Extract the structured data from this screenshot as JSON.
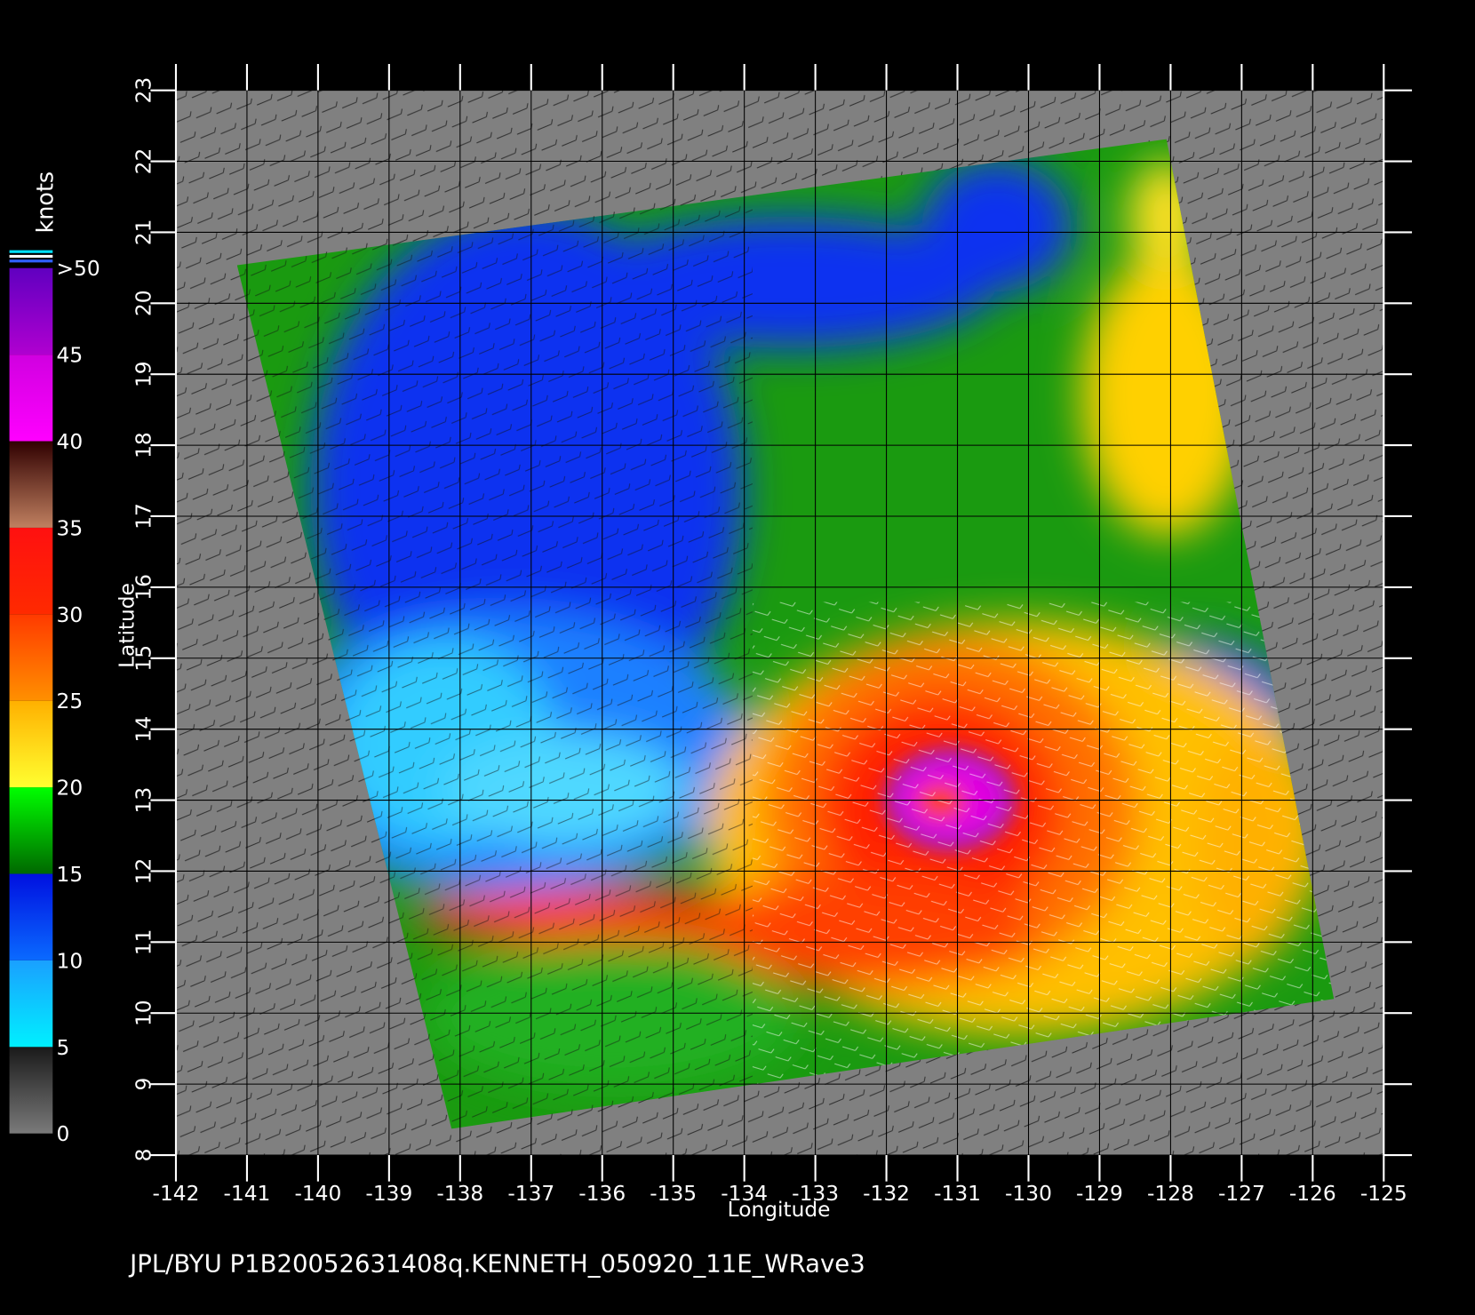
{
  "map": {
    "x_label": "Longitude",
    "y_label": "Latitude",
    "xlim": [
      -142,
      -125
    ],
    "xticks": [
      -142,
      -141,
      -140,
      -139,
      -138,
      -137,
      -136,
      -135,
      -134,
      -133,
      -132,
      -131,
      -130,
      -129,
      -128,
      -127,
      -126,
      -125
    ],
    "ylim": [
      8,
      23
    ],
    "yticks": [
      8,
      9,
      10,
      11,
      12,
      13,
      14,
      15,
      16,
      17,
      18,
      19,
      20,
      21,
      22,
      23
    ],
    "grid": true,
    "background": "#808080"
  },
  "colorbar": {
    "title": "knots",
    "lim": [
      0,
      50
    ],
    "ticks": [
      0,
      5,
      10,
      15,
      20,
      25,
      30,
      35,
      40,
      45,
      {
        "value": 50,
        "label": ">50"
      }
    ],
    "colors": [
      [
        "#7a7a7a",
        "#1a1a1a"
      ],
      [
        "#00f0ff",
        "#1aa0ff"
      ],
      [
        "#0a6aff",
        "#0010e0"
      ],
      [
        "#006800",
        "#00ff00"
      ],
      [
        "#ffff30",
        "#ffb000"
      ],
      [
        "#ff9000",
        "#ff3a00"
      ],
      [
        "#ff2a00",
        "#ff1010"
      ],
      [
        "#c08060",
        "#300000"
      ],
      [
        "#ff00ff",
        "#d000e0"
      ],
      [
        "#b000d0",
        "#6000c0"
      ]
    ]
  },
  "footer": "JPL/BYU  P1B20052631408q.KENNETH_050920_11E_WRave3"
}
